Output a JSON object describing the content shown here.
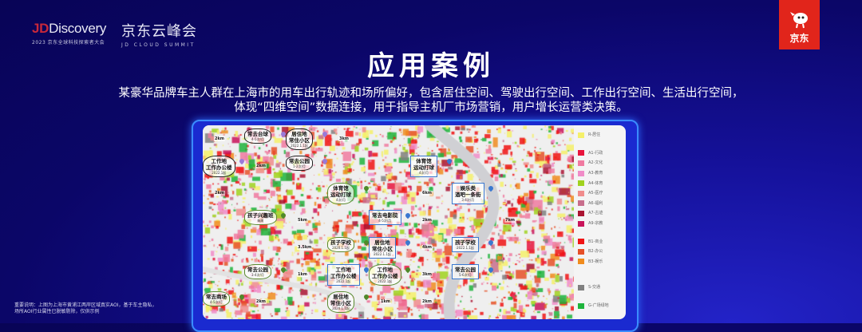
{
  "header": {
    "logo_left": {
      "brand_jd": "JD",
      "brand_rest": "Discovery",
      "subtitle": "2023 京东全球科技探索者大会"
    },
    "logo_right": {
      "cn": "京东云峰会",
      "en": "JD CLOUD SUMMIT"
    },
    "badge": {
      "text": "京东",
      "color": "#e1251b",
      "icon": "jd-dog-mascot-icon"
    }
  },
  "title": "应用案例",
  "description": [
    "某豪华品牌车主人群在上海市的用车出行轨迹和场所偏好，包含居住空间、驾驶出行空间、工作出行空间、生活出行空间，",
    "体现“四维空间”数据连接，用于指导主机厂市场营销，用户增长运营类决策。"
  ],
  "legend": [
    {
      "label": "R-居住",
      "color": "#f5f06a"
    },
    {
      "label": "A1-行政",
      "color": "#e8143c"
    },
    {
      "label": "A2-文化",
      "color": "#f07aa0"
    },
    {
      "label": "A3-教育",
      "color": "#f08cc8"
    },
    {
      "label": "A4-体育",
      "color": "#a0d21e"
    },
    {
      "label": "A5-医疗",
      "color": "#f08c8c"
    },
    {
      "label": "A6-福利",
      "color": "#c86e8c"
    },
    {
      "label": "A7-古迹",
      "color": "#aa1432"
    },
    {
      "label": "A9-宗教",
      "color": "#c8145a"
    },
    {
      "label": "B1-商业",
      "color": "#f01414"
    },
    {
      "label": "B2-办公",
      "color": "#e65028"
    },
    {
      "label": "B3-娱乐",
      "color": "#f08c1e"
    },
    {
      "label": "S-交通",
      "color": "#808080"
    },
    {
      "label": "G-广场绿地",
      "color": "#1eb43c"
    }
  ],
  "callouts": [
    {
      "title": "常去台球",
      "sub": "4-5次/月",
      "style": "black"
    },
    {
      "title": "居住地\n常住小区",
      "sub": "2022.1.1起",
      "style": "black"
    },
    {
      "title": "工作地\n工作办公楼",
      "sub": "2022.1起",
      "style": "black"
    },
    {
      "title": "常去公园",
      "sub": "1-2次/月",
      "style": "black"
    },
    {
      "title": "体育馆\n运动打球",
      "sub": "4次/月",
      "style": "green"
    },
    {
      "title": "孩子兴趣班",
      "sub": "每周",
      "style": "green"
    },
    {
      "title": "孩子学校",
      "sub": "2020.1.1起",
      "style": "green"
    },
    {
      "title": "常去公园",
      "sub": "3-4次/月",
      "style": "green"
    },
    {
      "title": "常去商场",
      "sub": "4-5次/月",
      "style": "green"
    },
    {
      "title": "居住地\n常住小区",
      "sub": "2020.1.1起",
      "style": "green"
    },
    {
      "title": "工作地\n工作办公楼",
      "sub": "2022.1起",
      "style": "green"
    },
    {
      "title": "体育馆\n运动打球",
      "sub": "4次/月",
      "style": "blue"
    },
    {
      "title": "常去电影院",
      "sub": "4-5次/月",
      "style": "blue"
    },
    {
      "title": "居住地\n常住小区",
      "sub": "2022.1.1起",
      "style": "blue"
    },
    {
      "title": "工作地\n工作办公楼",
      "sub": "2022.1起",
      "style": "blue"
    },
    {
      "title": "娱乐类\n酒吧一条街",
      "sub": "3-4次/月",
      "style": "blue"
    },
    {
      "title": "孩子学校",
      "sub": "2022.1.1起",
      "style": "blue"
    },
    {
      "title": "常去公园",
      "sub": "5-6次/月",
      "style": "blue"
    }
  ],
  "distances": [
    "2km",
    "3km",
    "2km",
    "2km",
    "5km",
    "3.5km",
    "1km",
    "2km",
    "2km",
    "7km",
    "6km",
    "4km",
    "3km",
    "1km",
    "2km"
  ],
  "note": [
    "重要说明：上图为上海市黄浦江两岸区域真实AOI，基于车主隐私，",
    "场所AOI行业属性已脱敏剔除，仅供示例"
  ]
}
